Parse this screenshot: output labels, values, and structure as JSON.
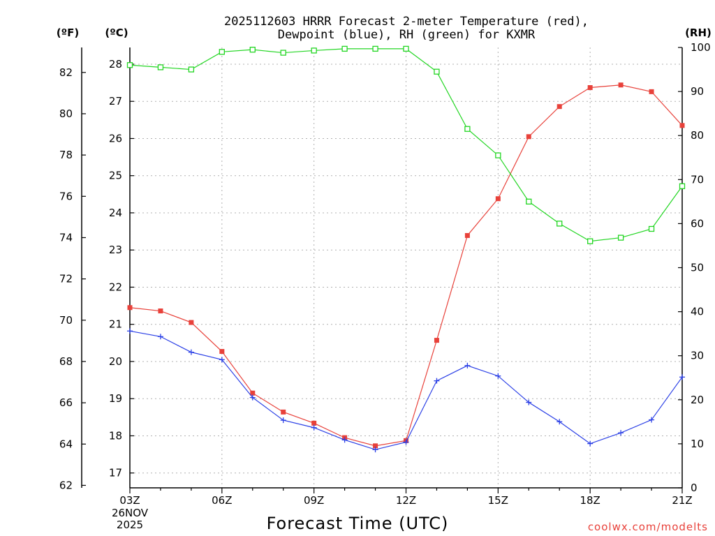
{
  "chart_data": {
    "type": "line",
    "title_line1": "2025112603 HRRR Forecast 2-meter Temperature (red),",
    "title_line2": "Dewpoint (blue), RH (green) for KXMR",
    "unit_f": "(ºF)",
    "unit_c": "(ºC)",
    "unit_rh": "(RH)",
    "xlabel": "Forecast Time (UTC)",
    "credit": "coolwx.com/modelts",
    "date_line1": "26NOV",
    "date_line2": "2025",
    "x_tick_labels": [
      "03Z",
      "06Z",
      "09Z",
      "12Z",
      "15Z",
      "18Z",
      "21Z"
    ],
    "x_ticks_hours": [
      3,
      6,
      9,
      12,
      15,
      18,
      21
    ],
    "x_range_hours": [
      3,
      21
    ],
    "y_celsius_range": [
      16.6,
      28.45
    ],
    "y_celsius_ticks": [
      17,
      18,
      19,
      20,
      21,
      22,
      23,
      24,
      25,
      26,
      27,
      28
    ],
    "y_fahrenheit_ticks": [
      62,
      64,
      66,
      68,
      70,
      72,
      74,
      76,
      78,
      80,
      82
    ],
    "y_rh_range": [
      0,
      100
    ],
    "y_rh_ticks": [
      0,
      10,
      20,
      30,
      40,
      50,
      60,
      70,
      80,
      90,
      100
    ],
    "colors": {
      "temperature": "#e8413a",
      "dewpoint": "#2a3fe6",
      "rh": "#22d622"
    },
    "series": [
      {
        "name": "Temperature",
        "axis": "celsius",
        "marker": "filled-square",
        "color": "#e8413a",
        "hours": [
          3,
          4,
          5,
          6,
          7,
          8,
          9,
          10,
          11,
          12,
          13,
          14,
          15,
          16,
          17,
          18,
          19,
          20,
          21
        ],
        "values": [
          21.45,
          21.36,
          21.05,
          20.27,
          19.15,
          18.64,
          18.34,
          17.95,
          17.73,
          17.87,
          20.57,
          23.39,
          24.38,
          26.05,
          26.86,
          27.37,
          27.44,
          27.26,
          26.35
        ]
      },
      {
        "name": "Dewpoint",
        "axis": "celsius",
        "marker": "plus",
        "color": "#2a3fe6",
        "hours": [
          3,
          4,
          5,
          6,
          7,
          8,
          9,
          10,
          11,
          12,
          13,
          14,
          15,
          16,
          17,
          18,
          19,
          20,
          21
        ],
        "values": [
          20.82,
          20.67,
          20.25,
          20.05,
          19.03,
          18.42,
          18.22,
          17.89,
          17.63,
          17.83,
          19.48,
          19.89,
          19.61,
          18.9,
          18.38,
          17.79,
          18.08,
          18.43,
          19.58
        ]
      },
      {
        "name": "RH",
        "axis": "rh",
        "marker": "open-square",
        "color": "#22d622",
        "hours": [
          3,
          4,
          5,
          6,
          7,
          8,
          9,
          10,
          11,
          12,
          13,
          14,
          15,
          16,
          17,
          18,
          19,
          20,
          21
        ],
        "values": [
          96,
          95.5,
          95,
          99,
          99.5,
          98.8,
          99.3,
          99.7,
          99.7,
          99.7,
          94.5,
          81.5,
          75.5,
          65,
          60,
          56,
          56.8,
          58.8,
          68.5
        ]
      }
    ]
  }
}
